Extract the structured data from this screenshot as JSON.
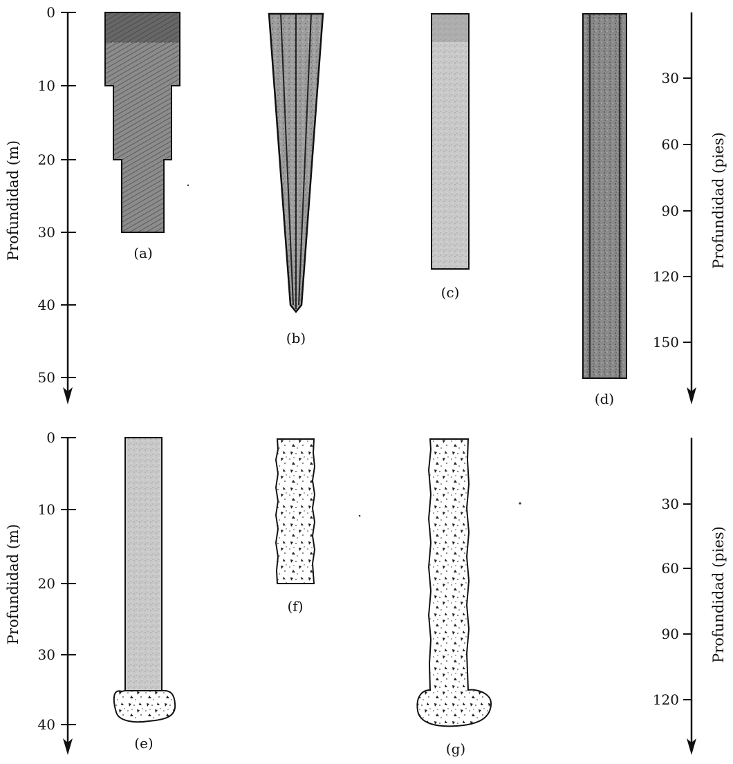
{
  "panels": [
    {
      "left_axis_label": "Profundidad (m)",
      "right_axis_label": "Profundidad (pies)",
      "left_ticks": [
        "0",
        "10",
        "20",
        "30",
        "40",
        "50"
      ],
      "right_ticks": [
        "30",
        "60",
        "90",
        "120",
        "150"
      ],
      "piles": [
        {
          "label": "(a)",
          "depth_m": 30,
          "type": "stepped-timber"
        },
        {
          "label": "(b)",
          "depth_m": 40,
          "type": "tapered-pipe"
        },
        {
          "label": "(c)",
          "depth_m": 35,
          "type": "concrete"
        },
        {
          "label": "(d)",
          "depth_m": 50,
          "type": "steel-pipe"
        }
      ]
    },
    {
      "left_axis_label": "Profundidad (m)",
      "right_axis_label": "Profundidad (pies)",
      "left_ticks": [
        "0",
        "10",
        "20",
        "30",
        "40"
      ],
      "right_ticks": [
        "30",
        "60",
        "90",
        "120"
      ],
      "piles": [
        {
          "label": "(e)",
          "depth_m": 35,
          "bulb": true,
          "type": "shell-with-bulb"
        },
        {
          "label": "(f)",
          "depth_m": 20,
          "type": "cast-in-place"
        },
        {
          "label": "(g)",
          "depth_m": 35,
          "bulb": true,
          "type": "cast-in-place-bulb"
        }
      ]
    }
  ]
}
